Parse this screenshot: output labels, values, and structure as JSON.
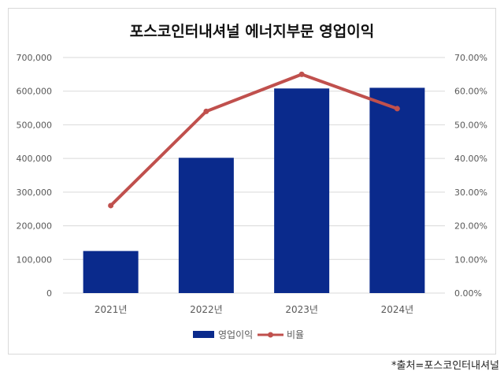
{
  "chart_data": {
    "type": "bar",
    "title": "포스코인터내셔널 에너지부문 영업이익",
    "categories": [
      "2021년",
      "2022년",
      "2023년",
      "2024년"
    ],
    "series": [
      {
        "name": "영업이익",
        "type": "bar",
        "axis": "left",
        "values": [
          125000,
          402000,
          608000,
          610000
        ]
      },
      {
        "name": "비율",
        "type": "line",
        "axis": "right",
        "values": [
          26.0,
          54.0,
          65.0,
          54.8
        ]
      }
    ],
    "y_left": {
      "min": 0,
      "max": 700000,
      "ticks": [
        "0",
        "100,000",
        "200,000",
        "300,000",
        "400,000",
        "500,000",
        "600,000",
        "700,000"
      ]
    },
    "y_right": {
      "min": 0,
      "max": 70,
      "ticks": [
        "0.00%",
        "10.00%",
        "20.00%",
        "30.00%",
        "40.00%",
        "50.00%",
        "60.00%",
        "70.00%"
      ]
    },
    "legend_position": "bottom",
    "grid": true,
    "colors": {
      "bar": "#0a2a8c",
      "line": "#c0504d",
      "grid": "#d9d9d9",
      "text": "#595959"
    }
  },
  "source_note": "*출처=포스코인터내셔널"
}
